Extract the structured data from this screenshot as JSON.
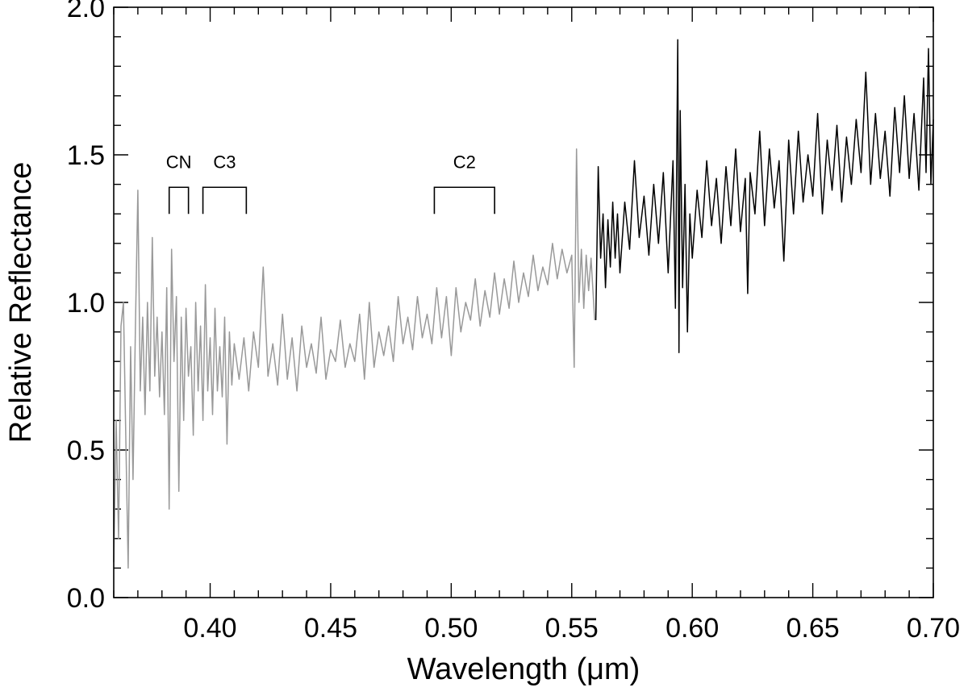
{
  "chart_data": {
    "type": "line",
    "xlabel": "Wavelength (μm)",
    "ylabel": "Relative Reflectance",
    "xlim": [
      0.36,
      0.7
    ],
    "ylim": [
      0.0,
      2.0
    ],
    "x_ticks": [
      0.4,
      0.45,
      0.5,
      0.55,
      0.6,
      0.65,
      0.7
    ],
    "x_tick_labels": [
      "0.40",
      "0.45",
      "0.50",
      "0.55",
      "0.60",
      "0.65",
      "0.70"
    ],
    "y_ticks": [
      0.0,
      0.5,
      1.0,
      1.5,
      2.0
    ],
    "y_tick_labels": [
      "0.0",
      "0.5",
      "1.0",
      "1.5",
      "2.0"
    ],
    "x_minor_step": 0.01,
    "y_minor_step": 0.1,
    "grid": false,
    "legend": "none",
    "series": [
      {
        "color": "#999999",
        "x_range": [
          0.36,
          0.5595
        ],
        "points": [
          [
            0.36,
            0.12
          ],
          [
            0.361,
            0.6
          ],
          [
            0.362,
            0.2
          ],
          [
            0.363,
            0.92
          ],
          [
            0.364,
            1.0
          ],
          [
            0.365,
            0.55
          ],
          [
            0.366,
            0.1
          ],
          [
            0.367,
            0.85
          ],
          [
            0.368,
            0.4
          ],
          [
            0.369,
            0.92
          ],
          [
            0.37,
            1.38
          ],
          [
            0.371,
            0.7
          ],
          [
            0.372,
            0.95
          ],
          [
            0.373,
            0.62
          ],
          [
            0.374,
            1.0
          ],
          [
            0.375,
            0.7
          ],
          [
            0.376,
            1.22
          ],
          [
            0.377,
            0.75
          ],
          [
            0.378,
            0.95
          ],
          [
            0.379,
            0.68
          ],
          [
            0.38,
            0.9
          ],
          [
            0.381,
            0.62
          ],
          [
            0.382,
            1.05
          ],
          [
            0.383,
            0.3
          ],
          [
            0.384,
            1.18
          ],
          [
            0.385,
            0.8
          ],
          [
            0.386,
            1.02
          ],
          [
            0.387,
            0.36
          ],
          [
            0.388,
            0.95
          ],
          [
            0.389,
            0.6
          ],
          [
            0.39,
            0.98
          ],
          [
            0.391,
            0.75
          ],
          [
            0.392,
            0.85
          ],
          [
            0.393,
            0.55
          ],
          [
            0.394,
            1.0
          ],
          [
            0.395,
            0.7
          ],
          [
            0.396,
            0.92
          ],
          [
            0.397,
            0.6
          ],
          [
            0.398,
            1.06
          ],
          [
            0.399,
            0.7
          ],
          [
            0.4,
            0.88
          ],
          [
            0.401,
            0.62
          ],
          [
            0.402,
            0.98
          ],
          [
            0.403,
            0.7
          ],
          [
            0.404,
            0.85
          ],
          [
            0.405,
            0.68
          ],
          [
            0.406,
            0.95
          ],
          [
            0.407,
            0.52
          ],
          [
            0.408,
            0.9
          ],
          [
            0.409,
            0.72
          ],
          [
            0.41,
            0.86
          ],
          [
            0.412,
            0.74
          ],
          [
            0.414,
            0.88
          ],
          [
            0.416,
            0.7
          ],
          [
            0.418,
            0.9
          ],
          [
            0.42,
            0.78
          ],
          [
            0.422,
            1.12
          ],
          [
            0.424,
            0.75
          ],
          [
            0.426,
            0.86
          ],
          [
            0.428,
            0.72
          ],
          [
            0.43,
            0.96
          ],
          [
            0.432,
            0.74
          ],
          [
            0.434,
            0.88
          ],
          [
            0.436,
            0.7
          ],
          [
            0.438,
            0.92
          ],
          [
            0.44,
            0.78
          ],
          [
            0.442,
            0.86
          ],
          [
            0.444,
            0.76
          ],
          [
            0.446,
            0.95
          ],
          [
            0.448,
            0.74
          ],
          [
            0.45,
            0.84
          ],
          [
            0.452,
            0.8
          ],
          [
            0.454,
            0.94
          ],
          [
            0.456,
            0.78
          ],
          [
            0.458,
            0.86
          ],
          [
            0.46,
            0.8
          ],
          [
            0.462,
            0.96
          ],
          [
            0.464,
            0.74
          ],
          [
            0.466,
            1.0
          ],
          [
            0.468,
            0.78
          ],
          [
            0.47,
            0.9
          ],
          [
            0.472,
            0.82
          ],
          [
            0.474,
            0.92
          ],
          [
            0.476,
            0.8
          ],
          [
            0.478,
            1.02
          ],
          [
            0.48,
            0.86
          ],
          [
            0.482,
            0.95
          ],
          [
            0.484,
            0.84
          ],
          [
            0.486,
            1.02
          ],
          [
            0.488,
            0.88
          ],
          [
            0.49,
            0.96
          ],
          [
            0.492,
            0.86
          ],
          [
            0.494,
            1.05
          ],
          [
            0.496,
            0.88
          ],
          [
            0.498,
            1.02
          ],
          [
            0.5,
            0.82
          ],
          [
            0.502,
            1.05
          ],
          [
            0.504,
            0.9
          ],
          [
            0.506,
            1.0
          ],
          [
            0.508,
            0.94
          ],
          [
            0.51,
            1.08
          ],
          [
            0.512,
            0.92
          ],
          [
            0.514,
            1.04
          ],
          [
            0.516,
            0.95
          ],
          [
            0.518,
            1.1
          ],
          [
            0.52,
            0.96
          ],
          [
            0.522,
            1.08
          ],
          [
            0.524,
            0.98
          ],
          [
            0.526,
            1.14
          ],
          [
            0.528,
            1.0
          ],
          [
            0.53,
            1.1
          ],
          [
            0.532,
            1.02
          ],
          [
            0.534,
            1.16
          ],
          [
            0.536,
            1.04
          ],
          [
            0.538,
            1.12
          ],
          [
            0.54,
            1.06
          ],
          [
            0.542,
            1.2
          ],
          [
            0.544,
            1.08
          ],
          [
            0.546,
            1.18
          ],
          [
            0.548,
            1.1
          ],
          [
            0.55,
            1.16
          ],
          [
            0.551,
            0.78
          ],
          [
            0.552,
            1.52
          ],
          [
            0.553,
            1.0
          ],
          [
            0.554,
            1.18
          ],
          [
            0.555,
            0.98
          ],
          [
            0.556,
            1.16
          ],
          [
            0.557,
            1.04
          ],
          [
            0.558,
            1.15
          ],
          [
            0.5595,
            0.94
          ]
        ]
      },
      {
        "color": "#000000",
        "x_range": [
          0.56,
          0.7
        ],
        "points": [
          [
            0.56,
            0.94
          ],
          [
            0.561,
            1.46
          ],
          [
            0.562,
            1.15
          ],
          [
            0.563,
            1.3
          ],
          [
            0.564,
            1.05
          ],
          [
            0.565,
            1.28
          ],
          [
            0.566,
            1.12
          ],
          [
            0.567,
            1.34
          ],
          [
            0.568,
            1.15
          ],
          [
            0.569,
            1.3
          ],
          [
            0.57,
            1.1
          ],
          [
            0.572,
            1.34
          ],
          [
            0.574,
            1.18
          ],
          [
            0.576,
            1.48
          ],
          [
            0.578,
            1.22
          ],
          [
            0.58,
            1.36
          ],
          [
            0.582,
            1.16
          ],
          [
            0.584,
            1.4
          ],
          [
            0.586,
            1.2
          ],
          [
            0.588,
            1.44
          ],
          [
            0.59,
            1.1
          ],
          [
            0.592,
            1.48
          ],
          [
            0.593,
            0.98
          ],
          [
            0.594,
            1.89
          ],
          [
            0.5945,
            0.83
          ],
          [
            0.595,
            1.65
          ],
          [
            0.596,
            1.05
          ],
          [
            0.597,
            1.4
          ],
          [
            0.598,
            0.9
          ],
          [
            0.599,
            1.3
          ],
          [
            0.6,
            1.15
          ],
          [
            0.602,
            1.38
          ],
          [
            0.604,
            1.22
          ],
          [
            0.606,
            1.48
          ],
          [
            0.608,
            1.26
          ],
          [
            0.61,
            1.42
          ],
          [
            0.612,
            1.2
          ],
          [
            0.614,
            1.46
          ],
          [
            0.616,
            1.26
          ],
          [
            0.618,
            1.52
          ],
          [
            0.62,
            1.24
          ],
          [
            0.622,
            1.42
          ],
          [
            0.623,
            1.03
          ],
          [
            0.624,
            1.44
          ],
          [
            0.626,
            1.3
          ],
          [
            0.628,
            1.58
          ],
          [
            0.63,
            1.26
          ],
          [
            0.632,
            1.52
          ],
          [
            0.634,
            1.32
          ],
          [
            0.636,
            1.48
          ],
          [
            0.638,
            1.14
          ],
          [
            0.64,
            1.55
          ],
          [
            0.642,
            1.3
          ],
          [
            0.644,
            1.58
          ],
          [
            0.646,
            1.34
          ],
          [
            0.648,
            1.5
          ],
          [
            0.65,
            1.36
          ],
          [
            0.652,
            1.64
          ],
          [
            0.654,
            1.3
          ],
          [
            0.656,
            1.55
          ],
          [
            0.658,
            1.38
          ],
          [
            0.66,
            1.6
          ],
          [
            0.662,
            1.34
          ],
          [
            0.664,
            1.56
          ],
          [
            0.666,
            1.4
          ],
          [
            0.668,
            1.62
          ],
          [
            0.67,
            1.44
          ],
          [
            0.672,
            1.78
          ],
          [
            0.674,
            1.4
          ],
          [
            0.676,
            1.64
          ],
          [
            0.678,
            1.42
          ],
          [
            0.68,
            1.58
          ],
          [
            0.682,
            1.36
          ],
          [
            0.684,
            1.66
          ],
          [
            0.686,
            1.44
          ],
          [
            0.688,
            1.7
          ],
          [
            0.69,
            1.42
          ],
          [
            0.692,
            1.64
          ],
          [
            0.694,
            1.38
          ],
          [
            0.696,
            1.76
          ],
          [
            0.697,
            1.44
          ],
          [
            0.698,
            1.86
          ],
          [
            0.699,
            1.4
          ],
          [
            0.7,
            1.62
          ]
        ]
      }
    ],
    "annotations": [
      {
        "label": "CN",
        "x_start": 0.383,
        "x_end": 0.391,
        "y_top": 1.39,
        "y_bottom": 1.3
      },
      {
        "label": "C3",
        "x_start": 0.397,
        "x_end": 0.415,
        "y_top": 1.39,
        "y_bottom": 1.3
      },
      {
        "label": "C2",
        "x_start": 0.493,
        "x_end": 0.518,
        "y_top": 1.39,
        "y_bottom": 1.3
      }
    ]
  }
}
